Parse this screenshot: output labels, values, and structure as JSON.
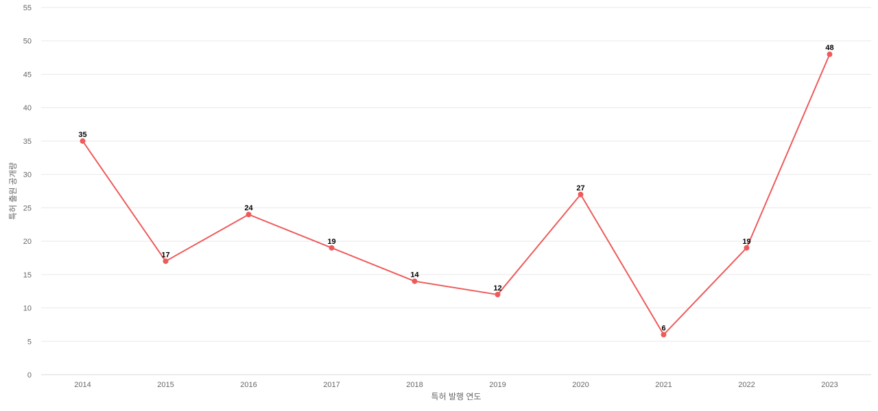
{
  "chart_data": {
    "type": "line",
    "x": [
      "2014",
      "2015",
      "2016",
      "2017",
      "2018",
      "2019",
      "2020",
      "2021",
      "2022",
      "2023"
    ],
    "series": [
      {
        "values": [
          35,
          17,
          24,
          19,
          14,
          12,
          27,
          6,
          19,
          48
        ],
        "color": "#ee5a5a"
      }
    ],
    "xlabel": "특허 발행 연도",
    "ylabel": "특허 출원 공개량",
    "ylim": [
      0,
      55
    ],
    "yticks": [
      0,
      5,
      10,
      15,
      20,
      25,
      30,
      35,
      40,
      45,
      50,
      55
    ],
    "grid": true,
    "data_labels": true,
    "legend": "none"
  }
}
